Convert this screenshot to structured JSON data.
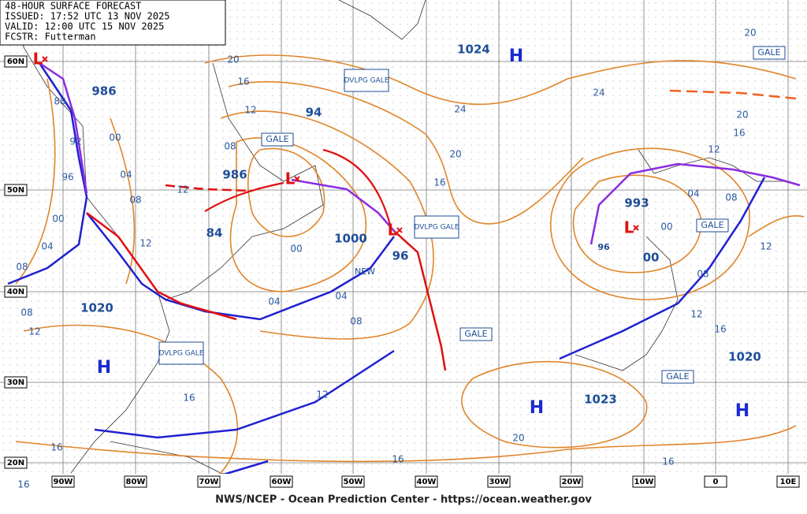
{
  "header": {
    "lines": [
      "48-HOUR SURFACE FORECAST",
      "ISSUED: 17:52 UTC 13 NOV 2025",
      "VALID: 12:00 UTC 15 NOV 2025",
      "FCSTR: Futterman"
    ]
  },
  "footer": "NWS/NCEP - Ocean Prediction Center - https://ocean.weather.gov",
  "latitudes": [
    "60N",
    "50N",
    "40N",
    "30N",
    "20N"
  ],
  "longitudes": [
    "90W",
    "80W",
    "70W",
    "60W",
    "50W",
    "40W",
    "30W",
    "20W",
    "10W",
    "0",
    "10E"
  ],
  "highs": [
    "H",
    "H",
    "H",
    "H"
  ],
  "lows": [
    "L",
    "L",
    "L",
    "L"
  ],
  "pressure_labels": [
    "986",
    "986",
    "84",
    "94",
    "1000",
    "96",
    "1024",
    "993",
    "00",
    "96",
    "1020",
    "1020",
    "1023"
  ],
  "isobar_labels": [
    "88",
    "92",
    "96",
    "00",
    "04",
    "08",
    "00",
    "04",
    "08",
    "12",
    "00",
    "04",
    "04",
    "08",
    "12",
    "08",
    "12",
    "16",
    "16",
    "16",
    "20",
    "16",
    "16",
    "20",
    "16",
    "12",
    "08",
    "12",
    "24",
    "20",
    "16",
    "24",
    "20",
    "16",
    "12",
    "08",
    "04",
    "00",
    "12",
    "08",
    "12",
    "16",
    "20"
  ],
  "boxes": [
    "DVLPG GALE",
    "DVLPG GALE",
    "DVLPG GALE",
    "GALE",
    "GALE",
    "GALE",
    "GALE",
    "GALE"
  ],
  "notes": [
    "NEW"
  ]
}
